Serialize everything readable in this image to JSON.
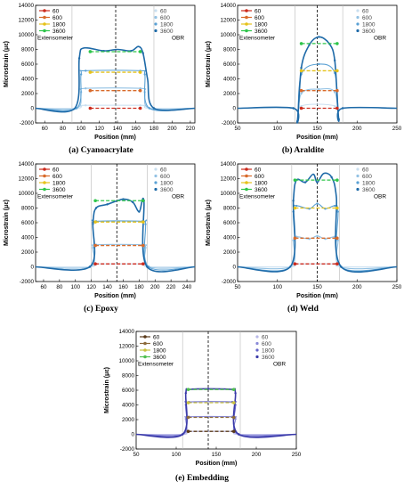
{
  "colors": {
    "ext60": "#cc2a1c",
    "ext600": "#d86a2a",
    "ext1800": "#e6c21a",
    "ext3600": "#2ec54a",
    "obr60": "#c9dff0",
    "obr600": "#93c2e4",
    "obr1800": "#5aa1d4",
    "obr3600": "#1e6aa8",
    "embed_ext60": "#5a3a1a",
    "embed_ext600": "#8c6a3a",
    "embed_ext1800": "#c8c040",
    "embed_ext3600": "#50c050",
    "embed_obr60": "#b8b8e8",
    "embed_obr600": "#8a8ad8",
    "embed_obr1800": "#6464c8",
    "embed_obr3600": "#3a3aa8"
  },
  "legend_labels": [
    "60",
    "600",
    "1800",
    "3600"
  ],
  "legend_group_ext": "Extensometer",
  "legend_group_obr": "OBR",
  "chart_data": [
    {
      "type": "line",
      "caption": "(a) Cyanoacrylate",
      "xlabel": "Position (mm)",
      "ylabel": "Microstrain (με)",
      "xlim": [
        50,
        225
      ],
      "ylim": [
        -2000,
        14000
      ],
      "xticks": [
        60,
        80,
        100,
        120,
        140,
        160,
        180,
        200,
        220
      ],
      "yticks": [
        -2000,
        0,
        2000,
        4000,
        6000,
        8000,
        10000,
        12000,
        14000
      ],
      "center_line": 138,
      "bounds": [
        90,
        180
      ],
      "ext_range": [
        110,
        165
      ],
      "extensometer": [
        {
          "name": "60",
          "value": 0
        },
        {
          "name": "600",
          "value": 2400
        },
        {
          "name": "1800",
          "value": 4900
        },
        {
          "name": "3600",
          "value": 7700
        }
      ],
      "obr": [
        {
          "name": "60",
          "x": [
            50,
            95,
            100,
            105,
            165,
            170,
            175,
            225
          ],
          "y": [
            0,
            0,
            300,
            400,
            400,
            300,
            0,
            0
          ]
        },
        {
          "name": "600",
          "x": [
            50,
            95,
            100,
            105,
            165,
            170,
            175,
            225
          ],
          "y": [
            0,
            0,
            2200,
            2700,
            2700,
            2200,
            0,
            0
          ]
        },
        {
          "name": "1800",
          "x": [
            50,
            95,
            100,
            105,
            165,
            170,
            175,
            225
          ],
          "y": [
            0,
            0,
            4600,
            5100,
            5100,
            4600,
            0,
            0
          ]
        },
        {
          "name": "3600",
          "x": [
            50,
            93,
            98,
            103,
            125,
            140,
            155,
            163,
            168,
            173,
            180,
            225
          ],
          "y": [
            0,
            0,
            6800,
            8200,
            7800,
            8000,
            7800,
            8400,
            7500,
            4000,
            0,
            0
          ]
        }
      ]
    },
    {
      "type": "line",
      "caption": "(b) Araldite",
      "xlabel": "Position (mm)",
      "ylabel": "Microstrain (με)",
      "xlim": [
        50,
        250
      ],
      "ylim": [
        -2000,
        14000
      ],
      "xticks": [
        50,
        100,
        150,
        200,
        250
      ],
      "yticks": [
        -2000,
        0,
        2000,
        4000,
        6000,
        8000,
        10000,
        12000,
        14000
      ],
      "center_line": 150,
      "bounds": [
        122,
        182
      ],
      "ext_range": [
        130,
        175
      ],
      "extensometer": [
        {
          "name": "60",
          "value": 0
        },
        {
          "name": "600",
          "value": 2400
        },
        {
          "name": "1800",
          "value": 5100
        },
        {
          "name": "3600",
          "value": 8800
        }
      ],
      "obr": [
        {
          "name": "60",
          "x": [
            50,
            120,
            125,
            130,
            172,
            177,
            182,
            250
          ],
          "y": [
            0,
            0,
            -1800,
            300,
            300,
            -1500,
            0,
            0
          ]
        },
        {
          "name": "600",
          "x": [
            50,
            120,
            125,
            130,
            152,
            172,
            177,
            182,
            250
          ],
          "y": [
            0,
            0,
            -1800,
            2000,
            2600,
            2200,
            -1500,
            0,
            0
          ]
        },
        {
          "name": "1800",
          "x": [
            50,
            120,
            125,
            130,
            152,
            172,
            177,
            182,
            250
          ],
          "y": [
            0,
            0,
            -1800,
            4600,
            6000,
            4800,
            -1500,
            0,
            0
          ]
        },
        {
          "name": "3600",
          "x": [
            50,
            120,
            125,
            130,
            140,
            152,
            165,
            172,
            177,
            182,
            250
          ],
          "y": [
            0,
            0,
            -1800,
            5500,
            8600,
            9700,
            8800,
            6500,
            -1500,
            0,
            0
          ]
        }
      ]
    },
    {
      "type": "line",
      "caption": "(c) Epoxy",
      "xlabel": "Position (mm)",
      "ylabel": "Microstrain (με)",
      "xlim": [
        50,
        250
      ],
      "ylim": [
        -2000,
        14000
      ],
      "xticks": [
        60,
        80,
        100,
        120,
        140,
        160,
        180,
        200,
        220,
        240
      ],
      "yticks": [
        -2000,
        0,
        2000,
        4000,
        6000,
        8000,
        10000,
        12000,
        14000
      ],
      "center_line": 152,
      "bounds": [
        120,
        190
      ],
      "ext_range": [
        125,
        185
      ],
      "extensometer": [
        {
          "name": "60",
          "value": 400
        },
        {
          "name": "600",
          "value": 2900
        },
        {
          "name": "1800",
          "value": 6100
        },
        {
          "name": "3600",
          "value": 9000
        }
      ],
      "obr": [
        {
          "name": "60",
          "x": [
            50,
            118,
            122,
            126,
            184,
            188,
            192,
            250
          ],
          "y": [
            0,
            0,
            300,
            400,
            400,
            300,
            0,
            0
          ]
        },
        {
          "name": "600",
          "x": [
            50,
            118,
            122,
            126,
            184,
            188,
            192,
            250
          ],
          "y": [
            0,
            0,
            2600,
            3000,
            3000,
            2600,
            0,
            0
          ]
        },
        {
          "name": "1800",
          "x": [
            50,
            118,
            122,
            126,
            184,
            188,
            192,
            250
          ],
          "y": [
            0,
            0,
            5800,
            6200,
            6200,
            5800,
            0,
            0
          ]
        },
        {
          "name": "3600",
          "x": [
            50,
            118,
            122,
            126,
            140,
            160,
            172,
            180,
            186,
            190,
            250
          ],
          "y": [
            0,
            0,
            6000,
            8000,
            8500,
            9200,
            8800,
            7500,
            9000,
            0,
            0
          ]
        }
      ]
    },
    {
      "type": "line",
      "caption": "(d) Weld",
      "xlabel": "Position (mm)",
      "ylabel": "Microstrain (με)",
      "xlim": [
        50,
        250
      ],
      "ylim": [
        -2000,
        14000
      ],
      "xticks": [
        50,
        100,
        150,
        200,
        250
      ],
      "yticks": [
        -2000,
        0,
        2000,
        4000,
        6000,
        8000,
        10000,
        12000,
        14000
      ],
      "center_line": 150,
      "bounds": [
        118,
        178
      ],
      "ext_range": [
        122,
        175
      ],
      "extensometer": [
        {
          "name": "60",
          "value": 400
        },
        {
          "name": "600",
          "value": 3900
        },
        {
          "name": "1800",
          "value": 8000
        },
        {
          "name": "3600",
          "value": 11800
        }
      ],
      "obr": [
        {
          "name": "60",
          "x": [
            50,
            116,
            120,
            124,
            172,
            176,
            180,
            250
          ],
          "y": [
            0,
            0,
            300,
            400,
            400,
            300,
            0,
            0
          ]
        },
        {
          "name": "600",
          "x": [
            50,
            116,
            120,
            124,
            140,
            150,
            160,
            172,
            176,
            180,
            250
          ],
          "y": [
            0,
            0,
            3600,
            4100,
            3800,
            4200,
            3800,
            4100,
            3600,
            0,
            0
          ]
        },
        {
          "name": "1800",
          "x": [
            50,
            116,
            120,
            124,
            140,
            150,
            160,
            172,
            176,
            180,
            250
          ],
          "y": [
            0,
            0,
            7500,
            8300,
            7900,
            8600,
            7900,
            8300,
            7500,
            0,
            0
          ]
        },
        {
          "name": "3600",
          "x": [
            50,
            116,
            120,
            124,
            135,
            145,
            150,
            158,
            168,
            174,
            180,
            250
          ],
          "y": [
            0,
            0,
            9000,
            11800,
            11500,
            12600,
            11500,
            12700,
            12200,
            9500,
            0,
            0
          ]
        }
      ]
    },
    {
      "type": "line",
      "caption": "(e) Embedding",
      "xlabel": "Position (mm)",
      "ylabel": "Microstrain (με)",
      "xlim": [
        50,
        250
      ],
      "ylim": [
        -2000,
        14000
      ],
      "xticks": [
        50,
        100,
        150,
        200,
        250
      ],
      "yticks": [
        -2000,
        0,
        2000,
        4000,
        6000,
        8000,
        10000,
        12000,
        14000
      ],
      "center_line": 140,
      "bounds": [
        108,
        180
      ],
      "ext_range": [
        115,
        172
      ],
      "extensometer": [
        {
          "name": "60",
          "value": 400
        },
        {
          "name": "600",
          "value": 2300
        },
        {
          "name": "1800",
          "value": 4300
        },
        {
          "name": "3600",
          "value": 6100
        }
      ],
      "obr": [
        {
          "name": "60",
          "x": [
            50,
            108,
            112,
            116,
            170,
            174,
            178,
            250
          ],
          "y": [
            0,
            0,
            300,
            400,
            400,
            300,
            0,
            0
          ]
        },
        {
          "name": "600",
          "x": [
            50,
            108,
            112,
            116,
            170,
            174,
            178,
            250
          ],
          "y": [
            0,
            0,
            2100,
            2400,
            2400,
            2100,
            0,
            0
          ]
        },
        {
          "name": "1800",
          "x": [
            50,
            108,
            112,
            116,
            170,
            174,
            178,
            250
          ],
          "y": [
            0,
            0,
            4000,
            4400,
            4400,
            4000,
            0,
            0
          ]
        },
        {
          "name": "3600",
          "x": [
            50,
            108,
            112,
            116,
            140,
            170,
            174,
            178,
            250
          ],
          "y": [
            0,
            0,
            5600,
            6100,
            6200,
            6100,
            5600,
            0,
            0
          ]
        }
      ]
    }
  ]
}
